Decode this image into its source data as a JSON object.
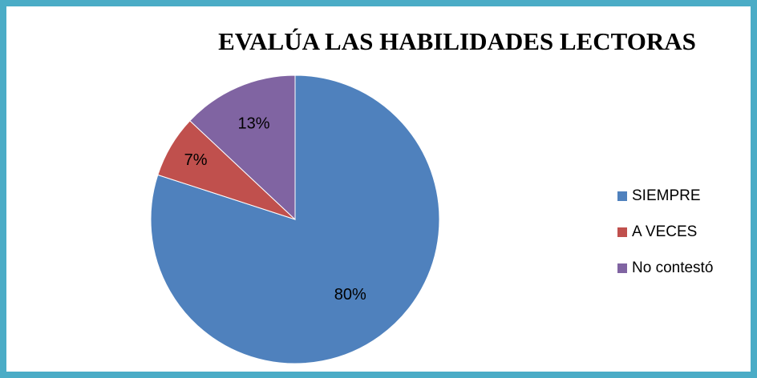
{
  "chart_data": {
    "type": "pie",
    "title": "EVALÚA LAS HABILIDADES LECTORAS",
    "categories": [
      "SIEMPRE",
      "A VECES",
      "No contestó"
    ],
    "values": [
      80,
      7,
      13
    ],
    "labels": [
      "80%",
      "7%",
      "13%"
    ],
    "colors": [
      "#4f81bd",
      "#c0504d",
      "#8064a2"
    ],
    "legend_position": "right"
  },
  "frame_color": "#4bacc6"
}
